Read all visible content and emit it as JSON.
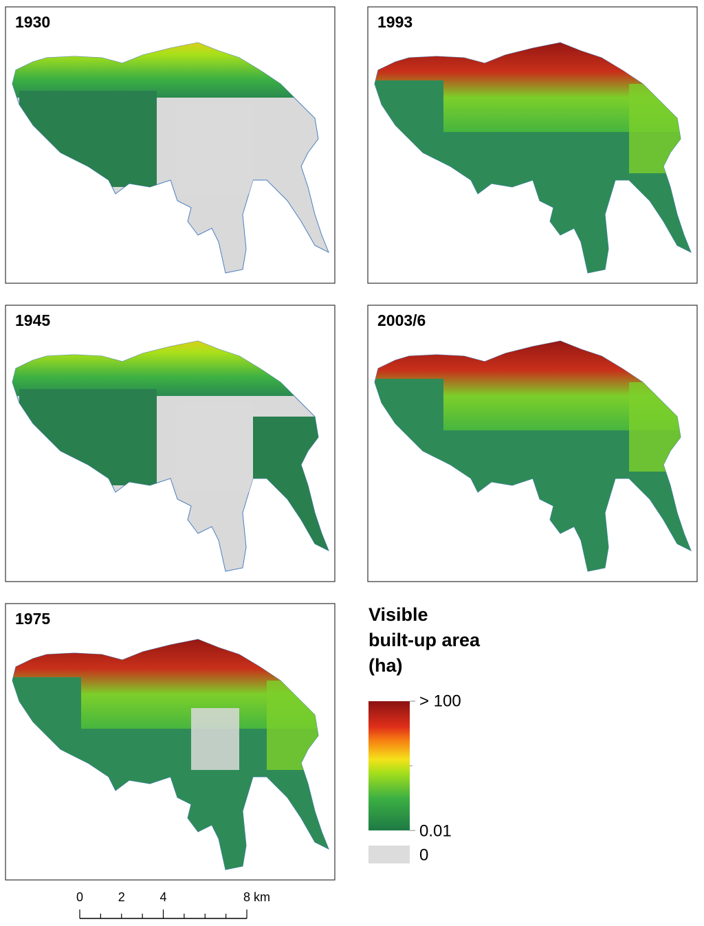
{
  "panels": [
    {
      "label": "1930",
      "state": "early"
    },
    {
      "label": "1993",
      "state": "late"
    },
    {
      "label": "1945",
      "state": "early"
    },
    {
      "label": "2003/6",
      "state": "late"
    },
    {
      "label": "1975",
      "state": "mid"
    }
  ],
  "legend": {
    "title_lines": [
      "Visible",
      "built-up area",
      "(ha)"
    ],
    "high_label": "> 100",
    "low_label": "0.01",
    "zero_label": "0"
  },
  "scale_bar": {
    "labels": [
      "0",
      "2",
      "4",
      "8 km"
    ]
  }
}
